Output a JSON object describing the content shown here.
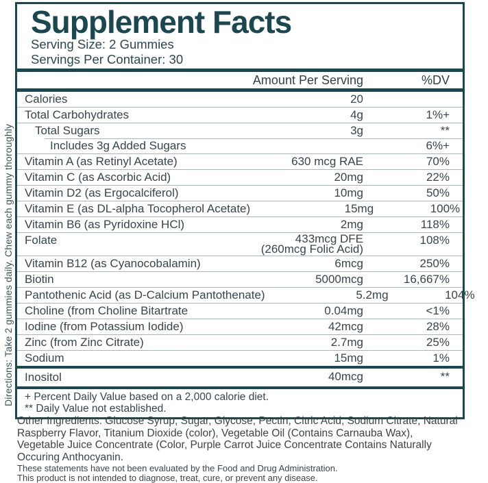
{
  "accent_color": "#1b4751",
  "directions": "Directions: Take 2 gummies daily. Chew each gummy thoroughly",
  "label": {
    "title": "Supplement Facts",
    "serving_size": "Serving Size: 2 Gummies",
    "servings_per_container": "Servings Per Container: 30",
    "columns": {
      "amount": "Amount Per Serving",
      "dv": "%DV"
    },
    "rows": [
      {
        "name": "Calories",
        "amount": "20",
        "dv": "",
        "indent": 0
      },
      {
        "name": "Total Carbohydrates",
        "amount": "4g",
        "dv": "1%+",
        "indent": 0
      },
      {
        "name": "Total Sugars",
        "amount": "3g",
        "dv": "**",
        "indent": 1
      },
      {
        "name": "Includes 3g Added Sugars",
        "amount": "",
        "dv": "6%+",
        "indent": 2,
        "sep_indent": true
      },
      {
        "name": "Vitamin A (as Retinyl Acetate)",
        "amount": "630 mcg RAE",
        "dv": "70%",
        "indent": 0
      },
      {
        "name": "Vitamin C (as Ascorbic Acid)",
        "amount": "20mg",
        "dv": "22%",
        "indent": 0
      },
      {
        "name": "Vitamin D2 (as Ergocalciferol)",
        "amount": "10mg",
        "dv": "50%",
        "indent": 0
      },
      {
        "name": "Vitamin E (as DL-alpha Tocopherol Acetate)",
        "amount": "15mg",
        "dv": "100%",
        "indent": 0
      },
      {
        "name": "Vitamin B6 (as Pyridoxine HCl)",
        "amount": "2mg",
        "dv": "118%",
        "indent": 0
      },
      {
        "name": "Folate",
        "amount": "433mcg DFE",
        "amount2": "(260mcg Folic Acid)",
        "dv": "108%",
        "indent": 0
      },
      {
        "name": "Vitamin B12 (as Cyanocobalamin)",
        "amount": "6mcg",
        "dv": "250%",
        "indent": 0
      },
      {
        "name": "Biotin",
        "amount": "5000mcg",
        "dv": "16,667%",
        "indent": 0
      },
      {
        "name": "Pantothenic Acid (as D-Calcium Pantothenate)",
        "amount": "5.2mg",
        "dv": "104%",
        "indent": 0
      },
      {
        "name": "Choline (from Choline Bitartrate",
        "amount": "0.04mg",
        "dv": "<1%",
        "indent": 0
      },
      {
        "name": "Iodine (from Potassium Iodide)",
        "amount": "42mcg",
        "dv": "28%",
        "indent": 0
      },
      {
        "name": "Zinc (from Zinc Citrate)",
        "amount": "2.7mg",
        "dv": "25%",
        "indent": 0
      },
      {
        "name": "Sodium",
        "amount": "15mg",
        "dv": "1%",
        "indent": 0
      }
    ],
    "extra_row": {
      "name": "Inositol",
      "amount": "40mcg",
      "dv": "**"
    },
    "footnotes": [
      "+ Percent Daily Value based on a 2,000 calorie diet.",
      "** Daily Value not established."
    ]
  },
  "other_ingredients": "Other Ingredients: Glucose Syrup, Sugar, Glycose, Pectin, Citric Acid, Sodium Citrate, Natural Raspberry Flavor, Titanium Dioxide (color), Vegetable Oil (Contains Carnauba Wax), Vegetable Juice Concentrate (Color, Purple Carrot Juice Concentrate Contains Naturally Occuring Anthocyanin.",
  "disclaimers": [
    "These statements have not been evaluated by the Food and Drug Administration.",
    "This product is not intended to diagnose, treat, cure, or prevent any disease."
  ]
}
